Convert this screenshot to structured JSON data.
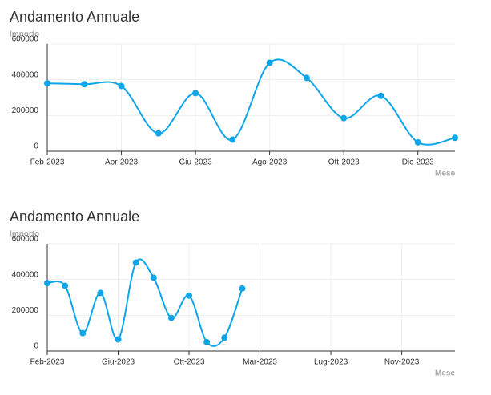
{
  "chart_data": [
    {
      "type": "line",
      "title": "Andamento Annuale",
      "y_label": "Importo",
      "x_label": "Mese",
      "x": [
        0,
        1,
        2,
        3,
        4,
        5,
        6,
        7,
        8,
        9,
        10,
        11
      ],
      "xlim": [
        0,
        11
      ],
      "xticks": [
        {
          "value": 0,
          "label": "Feb-2023"
        },
        {
          "value": 2,
          "label": "Apr-2023"
        },
        {
          "value": 4,
          "label": "Giu-2023"
        },
        {
          "value": 6,
          "label": "Ago-2023"
        },
        {
          "value": 8,
          "label": "Ott-2023"
        },
        {
          "value": 10,
          "label": "Dic-2023"
        }
      ],
      "ylim": [
        0,
        600000
      ],
      "yticks": [
        0,
        200000,
        400000,
        600000
      ],
      "grid": true,
      "series": [
        {
          "color": "#0ea5e9",
          "values": [
            380000,
            375000,
            365000,
            100000,
            325000,
            65000,
            495000,
            410000,
            185000,
            310000,
            50000,
            75000
          ]
        }
      ]
    },
    {
      "type": "line",
      "title": "Andamento Annuale",
      "y_label": "Importo",
      "x_label": "Mese",
      "x": [
        0,
        1,
        2,
        3,
        4,
        5,
        6,
        7,
        8,
        9,
        10,
        11
      ],
      "xlim": [
        0,
        23
      ],
      "xticks": [
        {
          "value": 0,
          "label": "Feb-2023"
        },
        {
          "value": 4,
          "label": "Giu-2023"
        },
        {
          "value": 8,
          "label": "Ott-2023"
        },
        {
          "value": 12,
          "label": "Mar-2023"
        },
        {
          "value": 16,
          "label": "Lug-2023"
        },
        {
          "value": 20,
          "label": "Nov-2023"
        }
      ],
      "ylim": [
        0,
        600000
      ],
      "yticks": [
        0,
        200000,
        400000,
        600000
      ],
      "grid": true,
      "series": [
        {
          "color": "#0ea5e9",
          "values": [
            380000,
            365000,
            100000,
            325000,
            65000,
            495000,
            410000,
            185000,
            310000,
            50000,
            75000,
            350000
          ]
        }
      ]
    }
  ]
}
